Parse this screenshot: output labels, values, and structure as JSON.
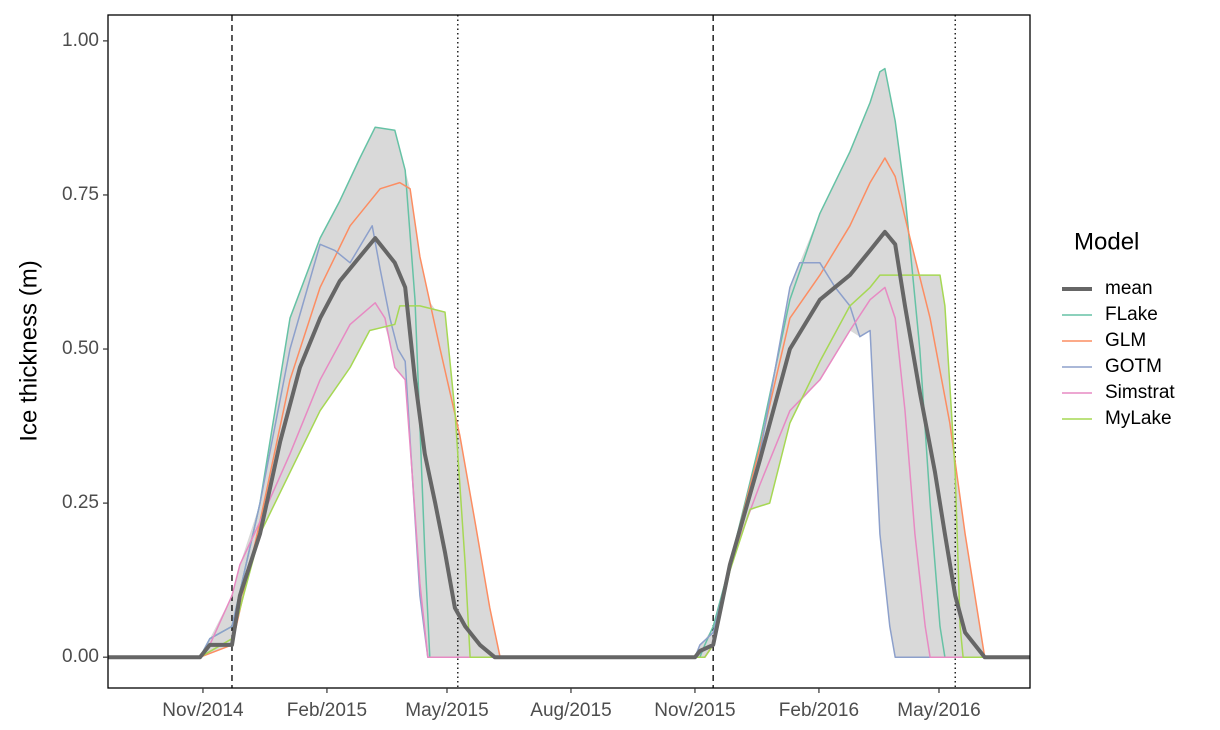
{
  "chart_data": {
    "type": "line",
    "y_label": "Ice thickness (m)",
    "legend_title": "Model",
    "legend": "right",
    "range_band_color": "#d9d9d9",
    "xlim": [
      2014.64,
      2016.514
    ],
    "xticks": [
      {
        "value": 2014.833,
        "label": "Nov/2014"
      },
      {
        "value": 2015.085,
        "label": "Feb/2015"
      },
      {
        "value": 2015.329,
        "label": "May/2015"
      },
      {
        "value": 2015.581,
        "label": "Aug/2015"
      },
      {
        "value": 2015.833,
        "label": "Nov/2015"
      },
      {
        "value": 2016.085,
        "label": "Feb/2016"
      },
      {
        "value": 2016.329,
        "label": "May/2016"
      }
    ],
    "ylim": [
      -0.05,
      1.042
    ],
    "yticks": [
      {
        "value": 0,
        "label": "0.00"
      },
      {
        "value": 0.25,
        "label": "0.25"
      },
      {
        "value": 0.5,
        "label": "0.50"
      },
      {
        "value": 0.75,
        "label": "0.75"
      },
      {
        "value": 1,
        "label": "1.00"
      }
    ],
    "vlines": [
      {
        "x": 2014.892,
        "style": "dashed"
      },
      {
        "x": 2015.351,
        "style": "dotted"
      },
      {
        "x": 2015.87,
        "style": "dashed"
      },
      {
        "x": 2016.362,
        "style": "dotted"
      }
    ],
    "series": [
      {
        "name": "mean",
        "color": "#666666",
        "width": 4,
        "x": [
          2014.64,
          2014.827,
          2014.847,
          2014.892,
          2014.908,
          2014.949,
          2014.99,
          2015.03,
          2015.071,
          2015.111,
          2015.152,
          2015.183,
          2015.203,
          2015.223,
          2015.244,
          2015.264,
          2015.284,
          2015.305,
          2015.325,
          2015.345,
          2015.366,
          2015.396,
          2015.426,
          2015.833,
          2015.843,
          2015.87,
          2015.904,
          2015.965,
          2016.026,
          2016.087,
          2016.148,
          2016.189,
          2016.219,
          2016.24,
          2016.26,
          2016.29,
          2016.321,
          2016.341,
          2016.362,
          2016.382,
          2016.402,
          2016.422,
          2016.514
        ],
        "values": [
          0,
          0,
          0.02,
          0.02,
          0.1,
          0.2,
          0.35,
          0.47,
          0.55,
          0.61,
          0.65,
          0.68,
          0.66,
          0.64,
          0.6,
          0.45,
          0.33,
          0.25,
          0.17,
          0.08,
          0.05,
          0.02,
          0,
          0,
          0.01,
          0.02,
          0.15,
          0.32,
          0.5,
          0.58,
          0.62,
          0.66,
          0.69,
          0.67,
          0.57,
          0.43,
          0.3,
          0.2,
          0.1,
          0.04,
          0.02,
          0,
          0
        ]
      },
      {
        "name": "FLake",
        "color": "#66c2a5",
        "width": 1.5,
        "x": [
          2014.64,
          2014.827,
          2014.847,
          2014.892,
          2014.949,
          2015.01,
          2015.071,
          2015.111,
          2015.152,
          2015.183,
          2015.223,
          2015.244,
          2015.264,
          2015.284,
          2015.294,
          2015.843,
          2015.853,
          2015.87,
          2015.904,
          2015.965,
          2016.026,
          2016.087,
          2016.148,
          2016.189,
          2016.209,
          2016.219,
          2016.24,
          2016.26,
          2016.29,
          2016.311,
          2016.331,
          2016.341,
          2016.514
        ],
        "values": [
          0,
          0,
          0.03,
          0.05,
          0.25,
          0.55,
          0.68,
          0.74,
          0.81,
          0.86,
          0.855,
          0.79,
          0.58,
          0.17,
          0,
          0,
          0.02,
          0.05,
          0.15,
          0.35,
          0.58,
          0.72,
          0.82,
          0.9,
          0.95,
          0.955,
          0.87,
          0.75,
          0.5,
          0.25,
          0.05,
          0,
          0
        ]
      },
      {
        "name": "GLM",
        "color": "#fc8d62",
        "width": 1.5,
        "x": [
          2014.64,
          2014.827,
          2014.892,
          2014.949,
          2015.01,
          2015.071,
          2015.132,
          2015.193,
          2015.233,
          2015.254,
          2015.274,
          2015.315,
          2015.355,
          2015.386,
          2015.416,
          2015.437,
          2015.853,
          2015.87,
          2015.904,
          2015.965,
          2016.026,
          2016.087,
          2016.148,
          2016.189,
          2016.219,
          2016.24,
          2016.27,
          2016.311,
          2016.351,
          2016.382,
          2016.412,
          2016.422,
          2016.514
        ],
        "values": [
          0,
          0,
          0.02,
          0.22,
          0.45,
          0.6,
          0.7,
          0.76,
          0.77,
          0.76,
          0.65,
          0.5,
          0.36,
          0.22,
          0.08,
          0,
          0,
          0.02,
          0.15,
          0.34,
          0.55,
          0.62,
          0.7,
          0.77,
          0.81,
          0.78,
          0.68,
          0.55,
          0.38,
          0.2,
          0.05,
          0,
          0
        ]
      },
      {
        "name": "GOTM",
        "color": "#8da0cb",
        "width": 1.5,
        "x": [
          2014.64,
          2014.827,
          2014.847,
          2014.892,
          2014.949,
          2015.01,
          2015.071,
          2015.101,
          2015.132,
          2015.162,
          2015.177,
          2015.193,
          2015.213,
          2015.229,
          2015.244,
          2015.258,
          2015.274,
          2015.29,
          2015.833,
          2015.843,
          2015.87,
          2015.904,
          2015.965,
          2016.026,
          2016.046,
          2016.087,
          2016.118,
          2016.148,
          2016.168,
          2016.189,
          2016.209,
          2016.229,
          2016.24,
          2016.514
        ],
        "values": [
          0,
          0,
          0.03,
          0.05,
          0.25,
          0.5,
          0.67,
          0.66,
          0.64,
          0.68,
          0.7,
          0.63,
          0.55,
          0.5,
          0.48,
          0.3,
          0.1,
          0,
          0,
          0.02,
          0.04,
          0.15,
          0.33,
          0.6,
          0.64,
          0.64,
          0.6,
          0.57,
          0.52,
          0.53,
          0.2,
          0.05,
          0,
          0
        ]
      },
      {
        "name": "Simstrat",
        "color": "#e78ac3",
        "width": 1.5,
        "x": [
          2014.64,
          2014.827,
          2014.847,
          2014.892,
          2014.908,
          2014.949,
          2015.01,
          2015.071,
          2015.132,
          2015.183,
          2015.203,
          2015.223,
          2015.244,
          2015.258,
          2015.274,
          2015.29,
          2015.853,
          2015.87,
          2015.904,
          2015.965,
          2016.026,
          2016.087,
          2016.148,
          2016.189,
          2016.219,
          2016.24,
          2016.26,
          2016.28,
          2016.301,
          2016.311,
          2016.514
        ],
        "values": [
          0,
          0,
          0.02,
          0.1,
          0.15,
          0.22,
          0.33,
          0.45,
          0.54,
          0.575,
          0.55,
          0.47,
          0.45,
          0.3,
          0.12,
          0,
          0,
          0.02,
          0.15,
          0.28,
          0.4,
          0.45,
          0.53,
          0.58,
          0.6,
          0.55,
          0.4,
          0.2,
          0.05,
          0,
          0
        ]
      },
      {
        "name": "MyLake",
        "color": "#a6d854",
        "width": 1.5,
        "x": [
          2014.64,
          2014.827,
          2014.892,
          2014.949,
          2015.01,
          2015.071,
          2015.132,
          2015.172,
          2015.223,
          2015.233,
          2015.274,
          2015.325,
          2015.345,
          2015.366,
          2015.376,
          2015.853,
          2015.87,
          2015.904,
          2015.945,
          2015.985,
          2016.026,
          2016.087,
          2016.148,
          2016.189,
          2016.209,
          2016.25,
          2016.331,
          2016.341,
          2016.362,
          2016.372,
          2016.378,
          2016.514
        ],
        "values": [
          0,
          0,
          0.03,
          0.2,
          0.3,
          0.4,
          0.47,
          0.53,
          0.54,
          0.57,
          0.57,
          0.56,
          0.4,
          0.15,
          0,
          0,
          0.02,
          0.14,
          0.24,
          0.25,
          0.38,
          0.48,
          0.57,
          0.6,
          0.62,
          0.62,
          0.62,
          0.57,
          0.3,
          0.05,
          0,
          0
        ]
      }
    ]
  }
}
